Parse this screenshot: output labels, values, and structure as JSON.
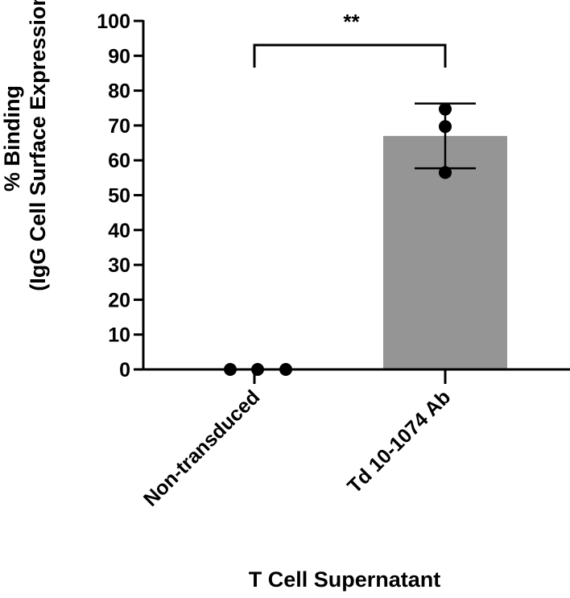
{
  "chart_data": {
    "type": "bar",
    "title": "",
    "categories": [
      "Non-transduced",
      "Td 10-1074 Ab"
    ],
    "series": [
      {
        "values": [
          0,
          67
        ],
        "error": [
          0,
          9.3
        ],
        "points": [
          [
            0,
            0,
            0
          ],
          [
            56.5,
            69.7,
            74.7
          ]
        ]
      }
    ],
    "xlabel": "T Cell Supernatant",
    "ylabel_line1": "% Binding",
    "ylabel_line2": "(IgG Cell Surface Expression)",
    "ylim": [
      0,
      100
    ],
    "yticks": [
      0,
      10,
      20,
      30,
      40,
      50,
      60,
      70,
      80,
      90,
      100
    ],
    "significance": {
      "label": "**",
      "between": [
        "Non-transduced",
        "Td 10-1074 Ab"
      ]
    },
    "grid": false,
    "legend": "none",
    "colors": {
      "bar": "#959595",
      "points": "#000000",
      "axis": "#000000"
    }
  }
}
